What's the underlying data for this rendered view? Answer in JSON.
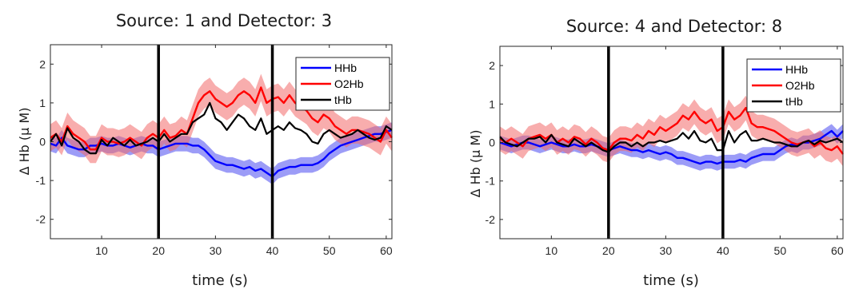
{
  "chart_data": [
    {
      "type": "line",
      "title": "Source: 1 and Detector: 3",
      "xlabel": "time (s)",
      "ylabel": "Δ Hb (μ M)",
      "xlim": [
        1,
        61
      ],
      "ylim": [
        -2.5,
        2.5
      ],
      "xticks": [
        10,
        20,
        30,
        40,
        50,
        60
      ],
      "yticks": [
        -2,
        -1,
        0,
        1,
        2
      ],
      "grid": false,
      "legend_position": "top-right",
      "vlines": [
        20,
        40
      ],
      "x": [
        1,
        2,
        3,
        4,
        5,
        6,
        7,
        8,
        9,
        10,
        11,
        12,
        13,
        14,
        15,
        16,
        17,
        18,
        19,
        20,
        21,
        22,
        23,
        24,
        25,
        26,
        27,
        28,
        29,
        30,
        31,
        32,
        33,
        34,
        35,
        36,
        37,
        38,
        39,
        40,
        41,
        42,
        43,
        44,
        45,
        46,
        47,
        48,
        49,
        50,
        51,
        52,
        53,
        54,
        55,
        56,
        57,
        58,
        59,
        60,
        61
      ],
      "series": [
        {
          "name": "HHb",
          "color": "#0000ff",
          "band_color": "#4a4af0",
          "values": [
            -0.05,
            -0.1,
            0.1,
            -0.1,
            -0.15,
            -0.2,
            -0.2,
            -0.1,
            -0.1,
            -0.05,
            -0.1,
            -0.1,
            -0.05,
            -0.1,
            -0.15,
            -0.1,
            -0.05,
            -0.1,
            -0.1,
            -0.2,
            -0.15,
            -0.1,
            -0.05,
            -0.05,
            -0.05,
            -0.1,
            -0.1,
            -0.2,
            -0.35,
            -0.5,
            -0.55,
            -0.6,
            -0.6,
            -0.65,
            -0.7,
            -0.65,
            -0.75,
            -0.7,
            -0.8,
            -0.9,
            -0.75,
            -0.7,
            -0.65,
            -0.65,
            -0.6,
            -0.6,
            -0.6,
            -0.55,
            -0.45,
            -0.3,
            -0.2,
            -0.1,
            -0.05,
            0.0,
            0.05,
            0.1,
            0.15,
            0.2,
            0.2,
            0.25,
            0.3
          ],
          "band": [
            0.2,
            0.2,
            0.2,
            0.2,
            0.2,
            0.2,
            0.2,
            0.2,
            0.2,
            0.2,
            0.2,
            0.2,
            0.2,
            0.2,
            0.2,
            0.2,
            0.2,
            0.2,
            0.2,
            0.2,
            0.2,
            0.2,
            0.2,
            0.2,
            0.2,
            0.2,
            0.2,
            0.2,
            0.2,
            0.2,
            0.2,
            0.2,
            0.2,
            0.2,
            0.2,
            0.2,
            0.2,
            0.2,
            0.2,
            0.2,
            0.2,
            0.2,
            0.2,
            0.2,
            0.2,
            0.2,
            0.2,
            0.2,
            0.2,
            0.2,
            0.2,
            0.2,
            0.2,
            0.2,
            0.2,
            0.2,
            0.2,
            0.2,
            0.2,
            0.2,
            0.2
          ]
        },
        {
          "name": "O2Hb",
          "color": "#ff0000",
          "band_color": "#f26a6a",
          "values": [
            0.1,
            0.2,
            0.0,
            0.4,
            0.2,
            0.1,
            0.0,
            -0.2,
            -0.2,
            0.1,
            0.0,
            0.0,
            -0.05,
            0.0,
            0.1,
            0.0,
            -0.1,
            0.1,
            0.2,
            0.1,
            0.3,
            0.1,
            0.15,
            0.3,
            0.2,
            0.6,
            1.0,
            1.2,
            1.3,
            1.1,
            1.0,
            0.9,
            1.0,
            1.2,
            1.3,
            1.2,
            1.0,
            1.4,
            1.0,
            1.1,
            1.15,
            1.0,
            1.2,
            1.0,
            0.9,
            0.8,
            0.6,
            0.5,
            0.7,
            0.6,
            0.4,
            0.3,
            0.2,
            0.3,
            0.3,
            0.25,
            0.2,
            0.1,
            0.0,
            0.3,
            0.1
          ],
          "band": [
            0.35,
            0.35,
            0.35,
            0.35,
            0.35,
            0.35,
            0.35,
            0.35,
            0.35,
            0.35,
            0.35,
            0.35,
            0.35,
            0.35,
            0.35,
            0.35,
            0.35,
            0.35,
            0.35,
            0.35,
            0.35,
            0.35,
            0.35,
            0.35,
            0.35,
            0.35,
            0.35,
            0.35,
            0.35,
            0.35,
            0.35,
            0.35,
            0.35,
            0.35,
            0.35,
            0.35,
            0.35,
            0.35,
            0.35,
            0.35,
            0.35,
            0.35,
            0.35,
            0.35,
            0.35,
            0.35,
            0.35,
            0.35,
            0.35,
            0.35,
            0.35,
            0.35,
            0.35,
            0.35,
            0.35,
            0.35,
            0.35,
            0.35,
            0.35,
            0.35,
            0.35
          ]
        },
        {
          "name": "tHb",
          "color": "#000000",
          "values": [
            0.0,
            0.2,
            -0.1,
            0.35,
            0.1,
            0.0,
            -0.2,
            -0.3,
            -0.3,
            0.05,
            -0.1,
            0.1,
            0.0,
            -0.1,
            0.05,
            -0.1,
            -0.05,
            0.0,
            0.1,
            0.0,
            0.2,
            0.0,
            0.1,
            0.2,
            0.2,
            0.5,
            0.6,
            0.7,
            1.0,
            0.6,
            0.5,
            0.3,
            0.5,
            0.7,
            0.6,
            0.4,
            0.3,
            0.6,
            0.2,
            0.3,
            0.4,
            0.3,
            0.5,
            0.35,
            0.3,
            0.2,
            0.0,
            -0.05,
            0.2,
            0.3,
            0.2,
            0.1,
            0.15,
            0.2,
            0.3,
            0.2,
            0.1,
            0.05,
            0.1,
            0.4,
            0.3
          ]
        }
      ]
    },
    {
      "type": "line",
      "title": "Source: 4 and Detector: 8",
      "xlabel": "time (s)",
      "ylabel": "Δ Hb (μ M)",
      "xlim": [
        1,
        61
      ],
      "ylim": [
        -2.5,
        2.5
      ],
      "xticks": [
        10,
        20,
        30,
        40,
        50,
        60
      ],
      "yticks": [
        -2,
        -1,
        0,
        1,
        2
      ],
      "grid": false,
      "legend_position": "top-right",
      "vlines": [
        20,
        40
      ],
      "x": [
        1,
        2,
        3,
        4,
        5,
        6,
        7,
        8,
        9,
        10,
        11,
        12,
        13,
        14,
        15,
        16,
        17,
        18,
        19,
        20,
        21,
        22,
        23,
        24,
        25,
        26,
        27,
        28,
        29,
        30,
        31,
        32,
        33,
        34,
        35,
        36,
        37,
        38,
        39,
        40,
        41,
        42,
        43,
        44,
        45,
        46,
        47,
        48,
        49,
        50,
        51,
        52,
        53,
        54,
        55,
        56,
        57,
        58,
        59,
        60,
        61
      ],
      "series": [
        {
          "name": "HHb",
          "color": "#0000ff",
          "band_color": "#4a4af0",
          "values": [
            0.0,
            -0.05,
            -0.1,
            -0.05,
            0.0,
            0.0,
            -0.05,
            -0.1,
            -0.05,
            0.0,
            -0.05,
            -0.1,
            -0.1,
            -0.05,
            -0.1,
            -0.1,
            -0.05,
            -0.1,
            -0.15,
            -0.2,
            -0.15,
            -0.1,
            -0.15,
            -0.2,
            -0.2,
            -0.25,
            -0.2,
            -0.25,
            -0.3,
            -0.25,
            -0.3,
            -0.4,
            -0.4,
            -0.45,
            -0.5,
            -0.55,
            -0.5,
            -0.5,
            -0.55,
            -0.5,
            -0.5,
            -0.5,
            -0.45,
            -0.5,
            -0.4,
            -0.35,
            -0.3,
            -0.3,
            -0.3,
            -0.2,
            -0.1,
            -0.05,
            -0.1,
            0.0,
            0.0,
            0.05,
            0.1,
            0.2,
            0.3,
            0.15,
            0.3
          ],
          "band": [
            0.18,
            0.18,
            0.18,
            0.18,
            0.18,
            0.18,
            0.18,
            0.18,
            0.18,
            0.18,
            0.18,
            0.18,
            0.18,
            0.18,
            0.18,
            0.18,
            0.18,
            0.18,
            0.18,
            0.18,
            0.18,
            0.18,
            0.18,
            0.18,
            0.18,
            0.18,
            0.18,
            0.18,
            0.18,
            0.18,
            0.18,
            0.18,
            0.18,
            0.18,
            0.18,
            0.18,
            0.18,
            0.18,
            0.18,
            0.18,
            0.18,
            0.18,
            0.18,
            0.18,
            0.18,
            0.18,
            0.18,
            0.18,
            0.18,
            0.18,
            0.18,
            0.18,
            0.18,
            0.18,
            0.18,
            0.18,
            0.18,
            0.18,
            0.18,
            0.18,
            0.18
          ]
        },
        {
          "name": "O2Hb",
          "color": "#ff0000",
          "band_color": "#f26a6a",
          "values": [
            0.1,
            0.0,
            0.1,
            0.0,
            -0.1,
            0.1,
            0.15,
            0.2,
            0.1,
            0.2,
            0.0,
            0.1,
            0.0,
            0.15,
            0.1,
            -0.05,
            0.1,
            0.0,
            -0.15,
            -0.2,
            0.0,
            0.1,
            0.1,
            0.05,
            0.2,
            0.1,
            0.3,
            0.2,
            0.4,
            0.3,
            0.4,
            0.5,
            0.7,
            0.6,
            0.8,
            0.6,
            0.5,
            0.6,
            0.3,
            0.4,
            0.8,
            0.6,
            0.7,
            0.9,
            0.5,
            0.4,
            0.4,
            0.35,
            0.3,
            0.2,
            0.1,
            0.0,
            -0.05,
            0.0,
            0.05,
            -0.1,
            0.0,
            -0.15,
            -0.2,
            -0.1,
            -0.3
          ],
          "band": [
            0.32,
            0.32,
            0.32,
            0.32,
            0.32,
            0.32,
            0.32,
            0.32,
            0.32,
            0.32,
            0.32,
            0.32,
            0.32,
            0.32,
            0.32,
            0.32,
            0.32,
            0.32,
            0.32,
            0.32,
            0.32,
            0.32,
            0.32,
            0.32,
            0.32,
            0.32,
            0.32,
            0.32,
            0.32,
            0.32,
            0.32,
            0.32,
            0.32,
            0.32,
            0.32,
            0.32,
            0.32,
            0.32,
            0.32,
            0.32,
            0.32,
            0.32,
            0.32,
            0.32,
            0.32,
            0.32,
            0.32,
            0.32,
            0.32,
            0.32,
            0.32,
            0.32,
            0.32,
            0.32,
            0.32,
            0.32,
            0.32,
            0.32,
            0.32,
            0.32,
            0.32
          ]
        },
        {
          "name": "tHb",
          "color": "#000000",
          "values": [
            0.15,
            0.0,
            -0.05,
            -0.1,
            0.0,
            0.1,
            0.1,
            0.15,
            0.0,
            0.2,
            0.0,
            -0.05,
            -0.1,
            0.1,
            0.0,
            -0.1,
            0.0,
            -0.1,
            -0.2,
            -0.25,
            -0.1,
            0.0,
            0.0,
            -0.1,
            0.0,
            -0.1,
            0.0,
            0.0,
            0.05,
            0.0,
            0.05,
            0.1,
            0.25,
            0.1,
            0.3,
            0.05,
            0.0,
            0.1,
            -0.2,
            -0.2,
            0.3,
            0.0,
            0.2,
            0.3,
            0.05,
            0.05,
            0.1,
            0.05,
            0.0,
            0.0,
            -0.05,
            -0.1,
            -0.1,
            0.0,
            0.05,
            -0.05,
            0.05,
            0.0,
            0.05,
            0.1,
            0.0
          ]
        }
      ]
    }
  ]
}
